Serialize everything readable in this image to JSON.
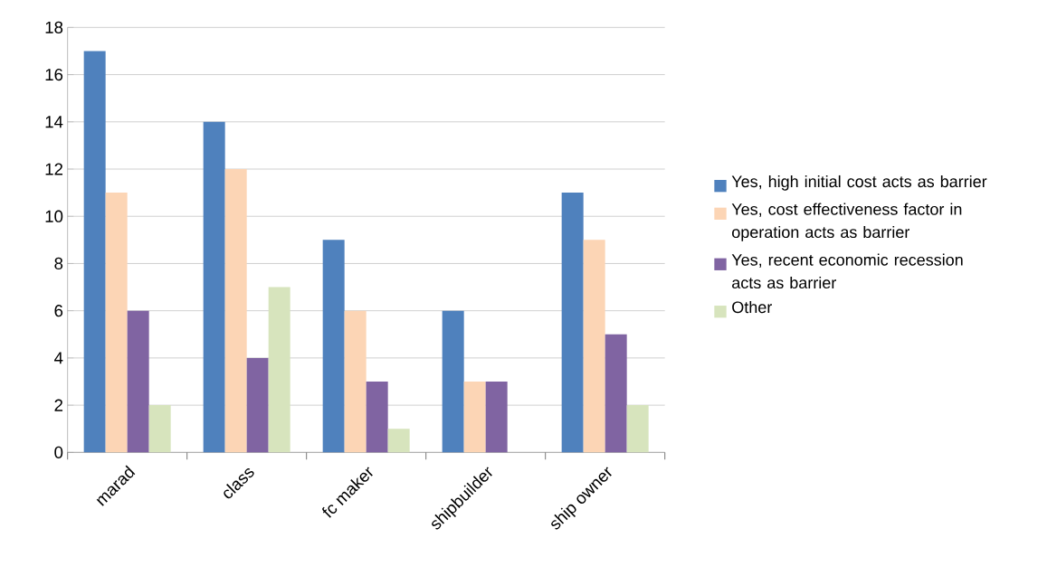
{
  "chart_data": {
    "type": "bar",
    "categories": [
      "marad",
      "class",
      "fc maker",
      "shipbuilder",
      "ship owner"
    ],
    "series": [
      {
        "name": "Yes, high initial cost acts as barrier",
        "color": "#4f81bd",
        "values": [
          17,
          14,
          9,
          6,
          11
        ]
      },
      {
        "name": "Yes, cost effectiveness factor in operation acts as barrier",
        "color": "#fcd5b5",
        "values": [
          11,
          12,
          6,
          3,
          9
        ]
      },
      {
        "name": "Yes, recent economic recession acts as barrier",
        "color": "#8064a2",
        "values": [
          6,
          4,
          3,
          3,
          5
        ]
      },
      {
        "name": "Other",
        "color": "#d7e4bd",
        "values": [
          2,
          7,
          1,
          0,
          2
        ]
      }
    ],
    "ylim": [
      0,
      18
    ],
    "yticks": [
      0,
      2,
      4,
      6,
      8,
      10,
      12,
      14,
      16,
      18
    ],
    "grid": "y",
    "legend": "right"
  }
}
